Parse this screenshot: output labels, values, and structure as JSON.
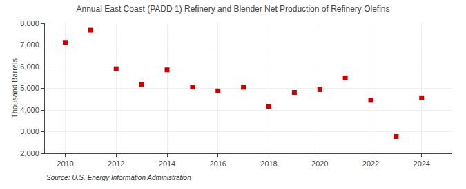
{
  "chart_data": {
    "type": "scatter",
    "title": "Annual East Coast (PADD 1) Refinery and Blender Net Production of Refinery Olefins",
    "ylabel": "Thousand Barrels",
    "annotations": [
      "Source: U.S. Energy Information Administration"
    ],
    "x": [
      2010,
      2011,
      2012,
      2013,
      2014,
      2015,
      2016,
      2017,
      2018,
      2019,
      2020,
      2021,
      2022,
      2023,
      2024
    ],
    "values": [
      7120,
      7680,
      5900,
      5180,
      5850,
      5060,
      4880,
      5050,
      4170,
      4810,
      4940,
      5480,
      4450,
      2780,
      4560
    ],
    "color": "#cc0000",
    "marker": "square",
    "xlim": [
      2009.2,
      2025.2
    ],
    "xticks": [
      2010,
      2012,
      2014,
      2016,
      2018,
      2020,
      2022,
      2024
    ],
    "ylim": [
      2000,
      8000
    ],
    "yticks": [
      {
        "value": 2000,
        "label": "2,000"
      },
      {
        "value": 3000,
        "label": "3,000"
      },
      {
        "value": 4000,
        "label": "4,000"
      },
      {
        "value": 5000,
        "label": "5,000"
      },
      {
        "value": 6000,
        "label": "6,000"
      },
      {
        "value": 7000,
        "label": "7,000"
      },
      {
        "value": 8000,
        "label": "8,000"
      }
    ],
    "grid": true
  }
}
